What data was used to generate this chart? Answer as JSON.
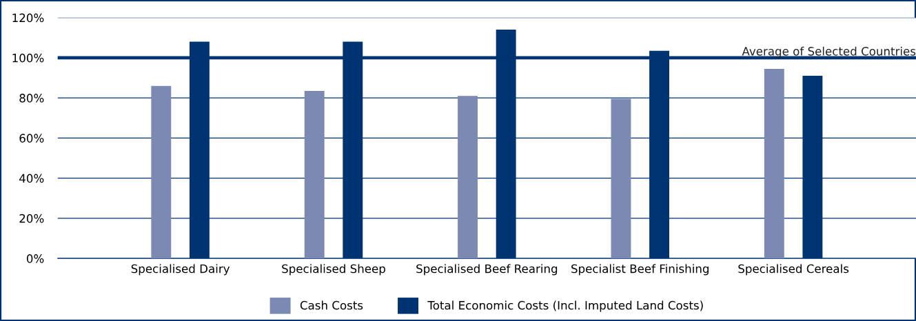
{
  "chart_data": {
    "type": "bar",
    "categories": [
      "Specialised Dairy",
      "Specialised Sheep",
      "Specialised Beef Rearing",
      "Specialist Beef Finishing",
      "Specialised Cereals"
    ],
    "series": [
      {
        "name": "Cash Costs",
        "color": "#7b89b3",
        "values": [
          86,
          83.5,
          81,
          79.5,
          94.5
        ]
      },
      {
        "name": "Total Economic Costs (Incl. Imputed Land Costs)",
        "color": "#003371",
        "values": [
          108,
          108,
          114,
          103.5,
          91
        ]
      }
    ],
    "ylim": [
      0,
      120
    ],
    "yticks": [
      {
        "value": 0,
        "label": "0%"
      },
      {
        "value": 20,
        "label": "20%"
      },
      {
        "value": 40,
        "label": "40%"
      },
      {
        "value": 60,
        "label": "60%"
      },
      {
        "value": 80,
        "label": "80%"
      },
      {
        "value": 100,
        "label": "100%"
      },
      {
        "value": 120,
        "label": "120%"
      }
    ],
    "ref_lines": [
      {
        "axis": "y",
        "value": 100,
        "label": "Average of Selected Countries",
        "color": "#003371"
      }
    ],
    "grid": "y",
    "legend": "bottom"
  }
}
